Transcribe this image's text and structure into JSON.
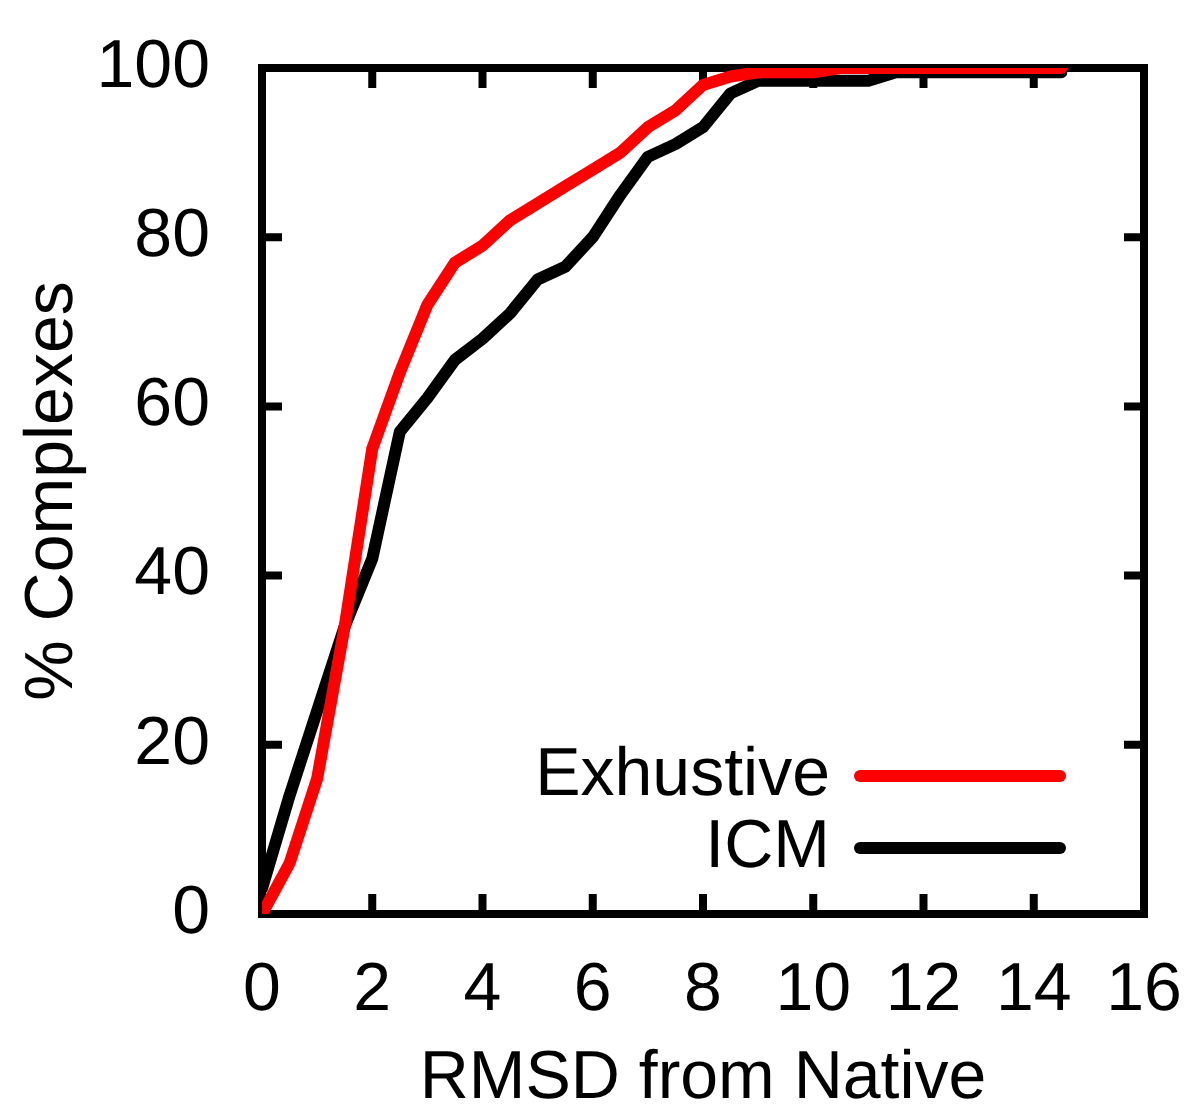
{
  "chart_data": {
    "type": "line",
    "xlabel": "RMSD from Native",
    "ylabel": "% Complexes",
    "x": [
      0,
      0.5,
      1,
      1.5,
      2,
      2.5,
      3,
      3.5,
      4,
      4.5,
      5,
      5.5,
      6,
      6.5,
      7,
      7.5,
      8,
      8.5,
      9,
      9.5,
      10,
      10.5,
      11,
      11.5,
      12,
      12.5,
      13,
      13.5,
      14,
      14.5
    ],
    "series": [
      {
        "name": "Exhustive",
        "color": "#ff0000",
        "values": [
          0,
          6,
          16,
          34,
          55,
          64,
          72,
          77,
          79,
          82,
          84,
          86,
          88,
          90,
          93,
          95,
          98,
          99,
          99.5,
          99.5,
          99.5,
          100,
          100,
          100,
          100,
          100,
          100,
          100,
          100,
          100
        ]
      },
      {
        "name": "ICM",
        "color": "#000000",
        "values": [
          3,
          14,
          24,
          34,
          42,
          57,
          61,
          65.5,
          68,
          71,
          75,
          76.5,
          80,
          85,
          89.5,
          91,
          93,
          97,
          98.5,
          98.5,
          98.5,
          98.5,
          98.5,
          99.5,
          99.5,
          99.5,
          99.5,
          99.5,
          99.5,
          99.5
        ]
      }
    ],
    "xlim": [
      0,
      16
    ],
    "ylim": [
      0,
      100
    ],
    "xticks": [
      0,
      2,
      4,
      6,
      8,
      10,
      12,
      14,
      16
    ],
    "yticks": [
      0,
      20,
      40,
      60,
      80,
      100
    ],
    "legend": "bottom right",
    "marker": "none",
    "line_style": "solid"
  }
}
